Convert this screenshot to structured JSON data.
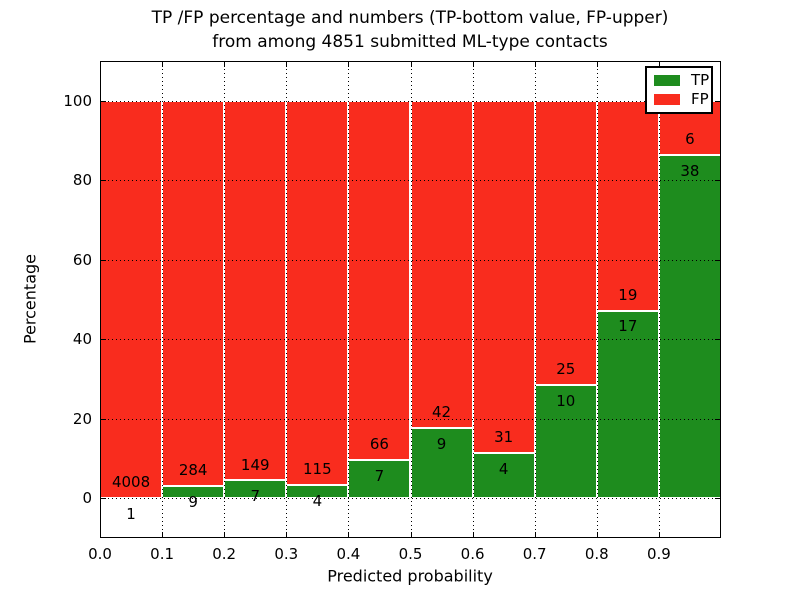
{
  "title": {
    "line1": "TP /FP percentage and numbers (TP-bottom value, FP-upper)",
    "line2": "from among 4851 submitted ML-type contacts"
  },
  "chart_data": {
    "type": "bar",
    "stacked": true,
    "normalized_to_percent": true,
    "title": "TP /FP percentage and numbers (TP-bottom value, FP-upper)\nfrom among 4851 submitted ML-type contacts",
    "xlabel": "Predicted probability",
    "ylabel": "Percentage",
    "total_contacts": 4851,
    "bin_edges": [
      0.0,
      0.1,
      0.2,
      0.3,
      0.4,
      0.5,
      0.6,
      0.7,
      0.8,
      0.9,
      1.0
    ],
    "categories": [
      "0.0-0.1",
      "0.1-0.2",
      "0.2-0.3",
      "0.3-0.4",
      "0.4-0.5",
      "0.5-0.6",
      "0.6-0.7",
      "0.7-0.8",
      "0.8-0.9",
      "0.9-1.0"
    ],
    "series": [
      {
        "name": "TP",
        "color": "#1e8c1e",
        "counts": [
          1,
          9,
          7,
          4,
          7,
          9,
          4,
          10,
          17,
          38
        ]
      },
      {
        "name": "FP",
        "color": "#f92c1e",
        "counts": [
          4008,
          284,
          149,
          115,
          66,
          42,
          31,
          25,
          19,
          6
        ]
      }
    ],
    "tp_percent": [
      0.02,
      3.07,
      4.49,
      3.36,
      9.59,
      17.65,
      11.43,
      28.57,
      47.22,
      86.36
    ],
    "fp_percent": [
      99.98,
      96.93,
      95.51,
      96.64,
      90.41,
      82.35,
      88.57,
      71.43,
      52.78,
      13.64
    ],
    "xlim": [
      0.0,
      1.0
    ],
    "ylim": [
      -10,
      110
    ],
    "xticks": {
      "values": [
        0.0,
        0.1,
        0.2,
        0.3,
        0.4,
        0.5,
        0.6,
        0.7,
        0.8,
        0.9
      ],
      "labels": [
        "0.0",
        "0.1",
        "0.2",
        "0.3",
        "0.4",
        "0.5",
        "0.6",
        "0.7",
        "0.8",
        "0.9"
      ]
    },
    "yticks": {
      "values": [
        0,
        20,
        40,
        60,
        80,
        100
      ],
      "labels": [
        "0",
        "20",
        "40",
        "60",
        "80",
        "100"
      ]
    },
    "grid": {
      "style": "dotted",
      "color": "#000000",
      "on": true
    },
    "legend": {
      "position": "upper right",
      "entries": [
        "TP",
        "FP"
      ]
    },
    "colors": {
      "tp": "#1e8c1e",
      "fp": "#f92c1e",
      "bar_edge": "#ffffff",
      "background": "#ffffff",
      "text": "#000000"
    }
  }
}
